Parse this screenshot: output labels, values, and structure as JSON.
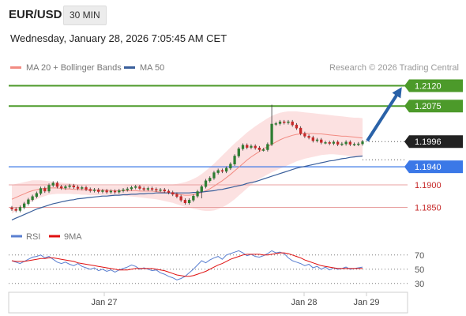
{
  "header": {
    "symbol": "EUR/USD",
    "timeframe": "30 MIN",
    "datetime": "Wednesday, January 28, 2026 7:05:45 AM CET"
  },
  "legend": {
    "ma20": "MA 20 + Bollinger Bands",
    "ma50": "MA 50",
    "credit": "Research © 2026 Trading Central"
  },
  "colors": {
    "bull": "#2e7d32",
    "bear": "#c62828",
    "ma20": "#f28b82",
    "ma50": "#3a5f9b",
    "resistance": "#4c9a2a",
    "support": "#3b78e7",
    "pivot": "#e8a0a0",
    "arrow": "#2a62a8",
    "rsi": "#5a7fd0",
    "rsi_ma": "#e01010"
  },
  "chart_data": [
    {
      "type": "candlestick",
      "title": "",
      "ylim": [
        1.1828,
        1.2135
      ],
      "x_ticks": [
        "Jan 27",
        "Jan 28",
        "Jan 29"
      ],
      "levels": [
        {
          "value": 1.212,
          "label": "1.2120",
          "style": "resistance"
        },
        {
          "value": 1.2075,
          "label": "1.2075",
          "style": "resistance"
        },
        {
          "value": 1.1996,
          "label": "1.1996",
          "style": "current"
        },
        {
          "value": 1.194,
          "label": "1.1940",
          "style": "support"
        },
        {
          "value": 1.19,
          "label": "1.1900",
          "style": "pivot"
        },
        {
          "value": 1.185,
          "label": "1.1850",
          "style": "pivot"
        }
      ],
      "projection_arrow": {
        "from": 1.1996,
        "to": 1.212
      },
      "close": [
        1.1846,
        1.1843,
        1.185,
        1.1858,
        1.1867,
        1.1874,
        1.1881,
        1.1892,
        1.1886,
        1.1899,
        1.1904,
        1.1896,
        1.1893,
        1.1896,
        1.1898,
        1.1895,
        1.1892,
        1.1894,
        1.189,
        1.1887,
        1.1889,
        1.1885,
        1.1887,
        1.1884,
        1.1886,
        1.1884,
        1.1887,
        1.1889,
        1.1891,
        1.1894,
        1.1896,
        1.1892,
        1.189,
        1.1892,
        1.189,
        1.1888,
        1.1889,
        1.1886,
        1.1883,
        1.1879,
        1.1874,
        1.1866,
        1.186,
        1.1866,
        1.1875,
        1.1885,
        1.1896,
        1.1909,
        1.1915,
        1.1927,
        1.1932,
        1.193,
        1.1937,
        1.1946,
        1.1964,
        1.198,
        1.1988,
        1.1983,
        1.1986,
        1.1982,
        1.1978,
        1.1978,
        1.199,
        1.2035,
        1.2036,
        1.204,
        1.2038,
        1.204,
        1.2033,
        1.2026,
        1.2014,
        1.2008,
        1.2005,
        1.1998,
        1.2,
        1.1994,
        1.1994,
        1.1992,
        1.1995,
        1.199,
        1.1991,
        1.1995,
        1.199,
        1.199,
        1.1991,
        1.1996
      ],
      "ma20": [
        1.1868,
        1.1872,
        1.1876,
        1.188,
        1.1884,
        1.1887,
        1.1889,
        1.1891,
        1.1892,
        1.1893,
        1.1893,
        1.1893,
        1.1892,
        1.1891,
        1.1891,
        1.189,
        1.189,
        1.1889,
        1.1889,
        1.1888,
        1.1888,
        1.1888,
        1.1888,
        1.1888,
        1.1887,
        1.1887,
        1.1887,
        1.1887,
        1.1887,
        1.1887,
        1.1887,
        1.1886,
        1.1886,
        1.1886,
        1.1886,
        1.1885,
        1.1884,
        1.1883,
        1.1882,
        1.1881,
        1.1879,
        1.1878,
        1.1877,
        1.1877,
        1.1878,
        1.188,
        1.1883,
        1.1887,
        1.1891,
        1.1897,
        1.1903,
        1.1909,
        1.1916,
        1.1923,
        1.1931,
        1.1939,
        1.1947,
        1.1955,
        1.1962,
        1.1968,
        1.1974,
        1.198,
        1.1985,
        1.199,
        1.1995,
        1.2,
        1.2004,
        1.2007,
        1.201,
        1.2012,
        1.2013,
        1.2014,
        1.2014,
        1.2014,
        1.2013,
        1.2013,
        1.2012,
        1.2011,
        1.201,
        1.2009,
        1.2008,
        1.2008,
        1.2007,
        1.2006,
        1.2005,
        1.2004
      ],
      "ma50": [
        1.1822,
        1.1826,
        1.183,
        1.1834,
        1.1838,
        1.1842,
        1.1846,
        1.1849,
        1.1852,
        1.1855,
        1.1858,
        1.186,
        1.1862,
        1.1864,
        1.1866,
        1.1867,
        1.1869,
        1.187,
        1.1871,
        1.1872,
        1.1873,
        1.1874,
        1.1875,
        1.1875,
        1.1876,
        1.1877,
        1.1877,
        1.1878,
        1.1878,
        1.1879,
        1.1879,
        1.188,
        1.188,
        1.1881,
        1.1881,
        1.1882,
        1.1882,
        1.1882,
        1.1882,
        1.1882,
        1.1882,
        1.1882,
        1.1882,
        1.1882,
        1.1883,
        1.1883,
        1.1884,
        1.1885,
        1.1886,
        1.1887,
        1.1889,
        1.189,
        1.1892,
        1.1894,
        1.1896,
        1.1898,
        1.19,
        1.1903,
        1.1905,
        1.1907,
        1.191,
        1.1913,
        1.1916,
        1.1919,
        1.1922,
        1.1925,
        1.1928,
        1.1931,
        1.1934,
        1.1937,
        1.1939,
        1.1941,
        1.1943,
        1.1945,
        1.1947,
        1.1949,
        1.1951,
        1.1953,
        1.1954,
        1.1956,
        1.1958,
        1.1959,
        1.1961,
        1.1962,
        1.1963,
        1.1964
      ],
      "bb_upper": [
        1.19,
        1.1902,
        1.1904,
        1.1906,
        1.1908,
        1.191,
        1.191,
        1.191,
        1.1909,
        1.1908,
        1.1907,
        1.1906,
        1.1905,
        1.1904,
        1.1903,
        1.1902,
        1.1901,
        1.19,
        1.1899,
        1.1898,
        1.1898,
        1.1898,
        1.1898,
        1.1898,
        1.1898,
        1.1898,
        1.1898,
        1.1898,
        1.1899,
        1.19,
        1.1901,
        1.1901,
        1.1901,
        1.1901,
        1.1901,
        1.1901,
        1.1901,
        1.1901,
        1.1901,
        1.1901,
        1.1902,
        1.1904,
        1.1906,
        1.1909,
        1.1913,
        1.1918,
        1.1924,
        1.1931,
        1.1939,
        1.1947,
        1.1956,
        1.1965,
        1.1974,
        1.1983,
        1.1992,
        1.2,
        1.2008,
        1.2016,
        1.2023,
        1.203,
        1.2036,
        1.2042,
        1.2048,
        1.2053,
        1.2057,
        1.206,
        1.2062,
        1.2063,
        1.2063,
        1.2063,
        1.2062,
        1.2061,
        1.206,
        1.2059,
        1.2058,
        1.2057,
        1.2056,
        1.2055,
        1.2054,
        1.2053,
        1.2052,
        1.2051,
        1.205,
        1.2049,
        1.2049,
        1.2048
      ],
      "bb_lower": [
        1.1836,
        1.1842,
        1.1848,
        1.1854,
        1.186,
        1.1864,
        1.1868,
        1.1872,
        1.1875,
        1.1878,
        1.1879,
        1.188,
        1.188,
        1.188,
        1.188,
        1.1879,
        1.1879,
        1.1878,
        1.1878,
        1.1877,
        1.1877,
        1.1877,
        1.1877,
        1.1877,
        1.1876,
        1.1876,
        1.1876,
        1.1876,
        1.1875,
        1.1874,
        1.1873,
        1.1872,
        1.1871,
        1.187,
        1.1869,
        1.1868,
        1.1866,
        1.1864,
        1.1862,
        1.186,
        1.1857,
        1.1854,
        1.1851,
        1.1849,
        1.1847,
        1.1845,
        1.1843,
        1.1842,
        1.1842,
        1.1843,
        1.1846,
        1.185,
        1.1855,
        1.1861,
        1.1868,
        1.1876,
        1.1884,
        1.1892,
        1.19,
        1.1907,
        1.1913,
        1.1918,
        1.1923,
        1.1928,
        1.1932,
        1.1936,
        1.194,
        1.1944,
        1.1948,
        1.1952,
        1.1955,
        1.1958,
        1.196,
        1.1962,
        1.1964,
        1.1966,
        1.1967,
        1.1968,
        1.1968,
        1.1967,
        1.1966,
        1.1965,
        1.1964,
        1.1963,
        1.1962,
        1.1962
      ]
    },
    {
      "type": "line",
      "title": "",
      "series_names": [
        "RSI",
        "9MA"
      ],
      "ylim": [
        22,
        82
      ],
      "y_ticks": [
        70,
        50,
        30
      ],
      "rsi": [
        62,
        60,
        58,
        61,
        64,
        67,
        68,
        70,
        66,
        68,
        64,
        60,
        58,
        60,
        57,
        55,
        58,
        54,
        52,
        50,
        52,
        48,
        50,
        47,
        49,
        46,
        49,
        51,
        53,
        56,
        54,
        50,
        52,
        50,
        48,
        49,
        45,
        43,
        40,
        38,
        35,
        37,
        40,
        45,
        50,
        56,
        62,
        59,
        63,
        66,
        68,
        64,
        70,
        72,
        74,
        76,
        73,
        69,
        71,
        68,
        67,
        69,
        72,
        76,
        73,
        74,
        72,
        66,
        62,
        60,
        58,
        55,
        57,
        52,
        54,
        50,
        53,
        49,
        52,
        50,
        51,
        53,
        50,
        51,
        52,
        53
      ],
      "rsi_ma": [
        62,
        61,
        61,
        61,
        62,
        63,
        64,
        65,
        65,
        66,
        66,
        65,
        64,
        63,
        62,
        61,
        59,
        58,
        57,
        56,
        55,
        54,
        53,
        52,
        51,
        50,
        49,
        49,
        49,
        50,
        51,
        51,
        51,
        51,
        51,
        50,
        49,
        48,
        46,
        44,
        42,
        41,
        40,
        40,
        41,
        43,
        45,
        47,
        50,
        53,
        56,
        58,
        61,
        64,
        66,
        68,
        70,
        71,
        71,
        71,
        71,
        70,
        70,
        71,
        72,
        73,
        73,
        72,
        70,
        68,
        66,
        63,
        61,
        59,
        57,
        55,
        54,
        53,
        52,
        51,
        51,
        51,
        51,
        51,
        51,
        51
      ]
    }
  ]
}
